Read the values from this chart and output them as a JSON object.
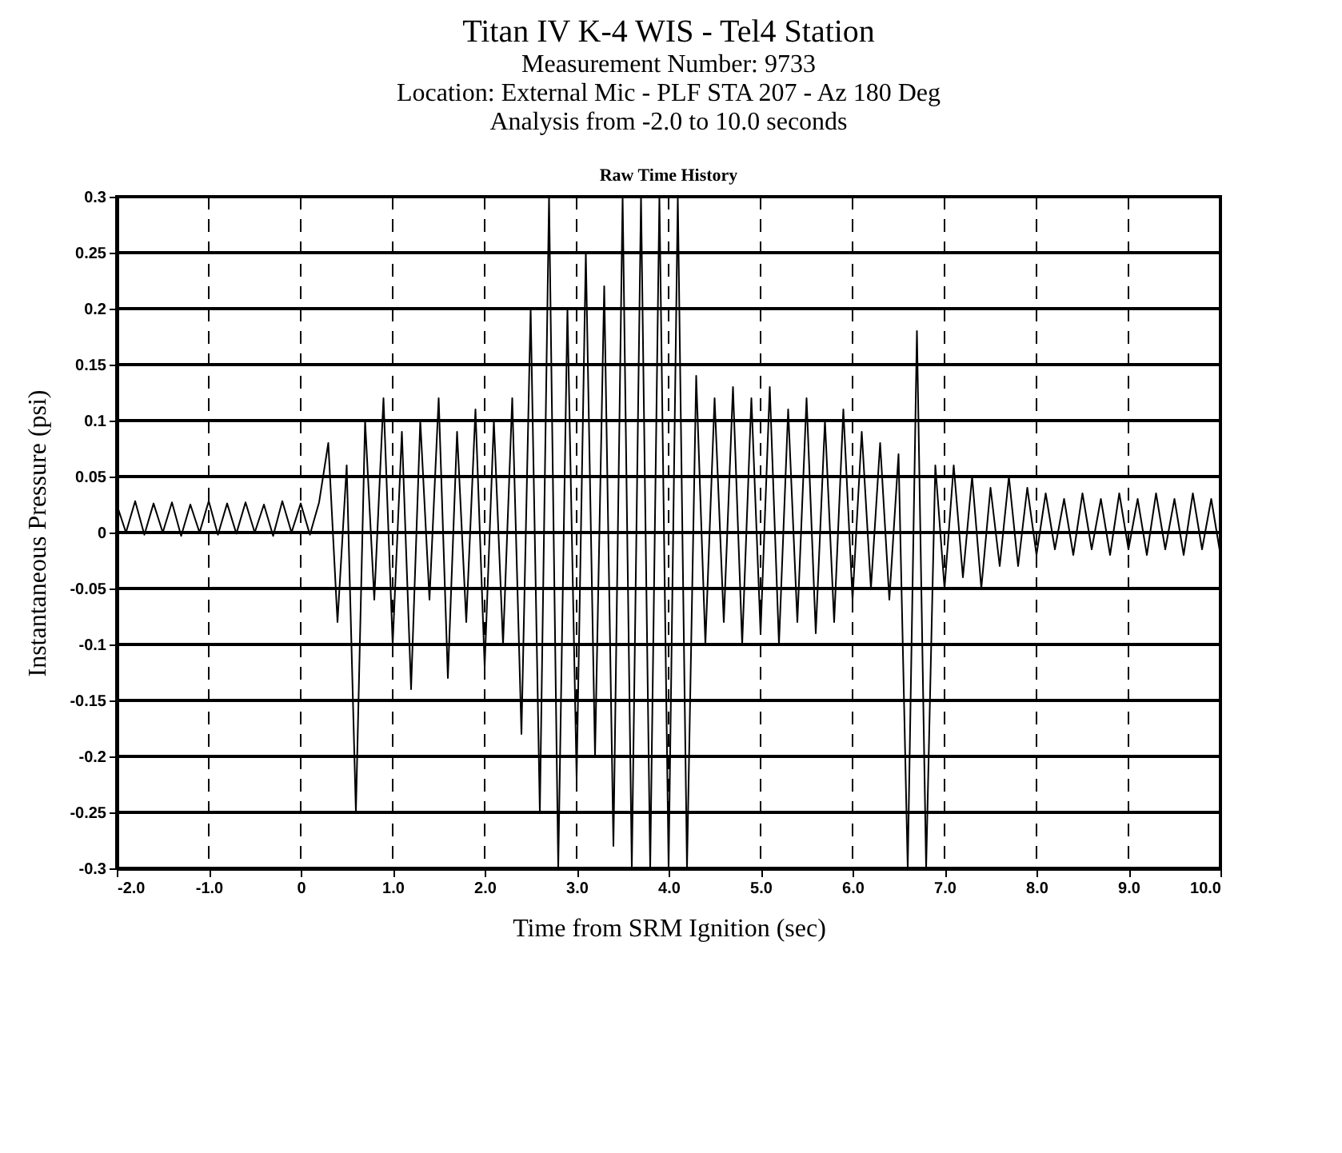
{
  "chart_data": {
    "type": "line",
    "title": "Titan IV K-4 WIS - Tel4 Station",
    "subtitle": "Measurement Number: 9733\nLocation: External Mic - PLF STA 207 - Az 180 Deg\nAnalysis from -2.0 to 10.0 seconds",
    "annotations": [
      "Raw Time History"
    ],
    "xlabel": "Time from SRM Ignition (sec)",
    "ylabel": "Instantaneous Pressure (psi)",
    "x": [
      -2.0,
      -1.9,
      -1.8,
      -1.7,
      -1.6,
      -1.5,
      -1.4,
      -1.3,
      -1.2,
      -1.1,
      -1.0,
      -0.9,
      -0.8,
      -0.7,
      -0.6,
      -0.5,
      -0.4,
      -0.3,
      -0.2,
      -0.1,
      0.0,
      0.1,
      0.2,
      0.3,
      0.4,
      0.5,
      0.6,
      0.7,
      0.8,
      0.9,
      1.0,
      1.1,
      1.2,
      1.3,
      1.4,
      1.5,
      1.6,
      1.7,
      1.8,
      1.9,
      2.0,
      2.1,
      2.2,
      2.3,
      2.4,
      2.5,
      2.6,
      2.7,
      2.8,
      2.9,
      3.0,
      3.1,
      3.2,
      3.3,
      3.4,
      3.5,
      3.6,
      3.7,
      3.8,
      3.9,
      4.0,
      4.1,
      4.2,
      4.3,
      4.4,
      4.5,
      4.6,
      4.7,
      4.8,
      4.9,
      5.0,
      5.1,
      5.2,
      5.3,
      5.4,
      5.5,
      5.6,
      5.7,
      5.8,
      5.9,
      6.0,
      6.1,
      6.2,
      6.3,
      6.4,
      6.5,
      6.6,
      6.7,
      6.8,
      6.9,
      7.0,
      7.1,
      7.2,
      7.3,
      7.4,
      7.5,
      7.6,
      7.7,
      7.8,
      7.9,
      8.0,
      8.1,
      8.2,
      8.3,
      8.4,
      8.5,
      8.6,
      8.7,
      8.8,
      8.9,
      9.0,
      9.1,
      9.2,
      9.3,
      9.4,
      9.5,
      9.6,
      9.7,
      9.8,
      9.9,
      10.0
    ],
    "series": [
      {
        "color": "#000000",
        "values": [
          0.025,
          0.0,
          0.028,
          -0.002,
          0.026,
          0.0,
          0.027,
          -0.003,
          0.025,
          0.0,
          0.028,
          -0.002,
          0.026,
          -0.001,
          0.027,
          0.0,
          0.025,
          -0.003,
          0.028,
          0.0,
          0.026,
          -0.002,
          0.027,
          0.08,
          -0.08,
          0.06,
          -0.25,
          0.1,
          -0.06,
          0.12,
          -0.1,
          0.09,
          -0.14,
          0.1,
          -0.06,
          0.12,
          -0.13,
          0.09,
          -0.08,
          0.11,
          -0.12,
          0.1,
          -0.1,
          0.12,
          -0.18,
          0.2,
          -0.25,
          0.3,
          -0.3,
          0.2,
          -0.22,
          0.25,
          -0.2,
          0.22,
          -0.28,
          0.3,
          -0.3,
          0.3,
          -0.3,
          0.3,
          -0.3,
          0.3,
          -0.3,
          0.14,
          -0.1,
          0.12,
          -0.08,
          0.13,
          -0.1,
          0.12,
          -0.09,
          0.13,
          -0.1,
          0.11,
          -0.08,
          0.12,
          -0.09,
          0.1,
          -0.08,
          0.11,
          -0.06,
          0.09,
          -0.05,
          0.08,
          -0.06,
          0.07,
          -0.3,
          0.18,
          -0.3,
          0.06,
          -0.05,
          0.06,
          -0.04,
          0.05,
          -0.05,
          0.04,
          -0.03,
          0.05,
          -0.03,
          0.04,
          -0.02,
          0.035,
          -0.015,
          0.03,
          -0.02,
          0.035,
          -0.015,
          0.03,
          -0.02,
          0.035,
          -0.015,
          0.03,
          -0.02,
          0.035,
          -0.015,
          0.03,
          -0.02,
          0.035,
          -0.015,
          0.03,
          -0.02
        ]
      }
    ],
    "xlim": [
      -2.0,
      10.0
    ],
    "xticks": [
      {
        "value": -2,
        "label": "-2.0"
      },
      {
        "value": -1,
        "label": "-1.0"
      },
      0,
      {
        "value": 1,
        "label": "1.0"
      },
      {
        "value": 2,
        "label": "2.0"
      },
      {
        "value": 3,
        "label": "3.0"
      },
      {
        "value": 4,
        "label": "4.0"
      },
      {
        "value": 5,
        "label": "5.0"
      },
      {
        "value": 6,
        "label": "6.0"
      },
      {
        "value": 7,
        "label": "7.0"
      },
      {
        "value": 8,
        "label": "8.0"
      },
      {
        "value": 9,
        "label": "9.0"
      },
      {
        "value": 10,
        "label": "10.0"
      }
    ],
    "ylim": [
      -0.3,
      0.3
    ],
    "yticks": [
      -0.3,
      -0.25,
      -0.2,
      -0.15,
      -0.1,
      -0.05,
      0,
      0.05,
      0.1,
      0.15,
      0.2,
      0.25,
      0.3
    ],
    "grid": true,
    "marker": "none",
    "line_style": "solid"
  }
}
